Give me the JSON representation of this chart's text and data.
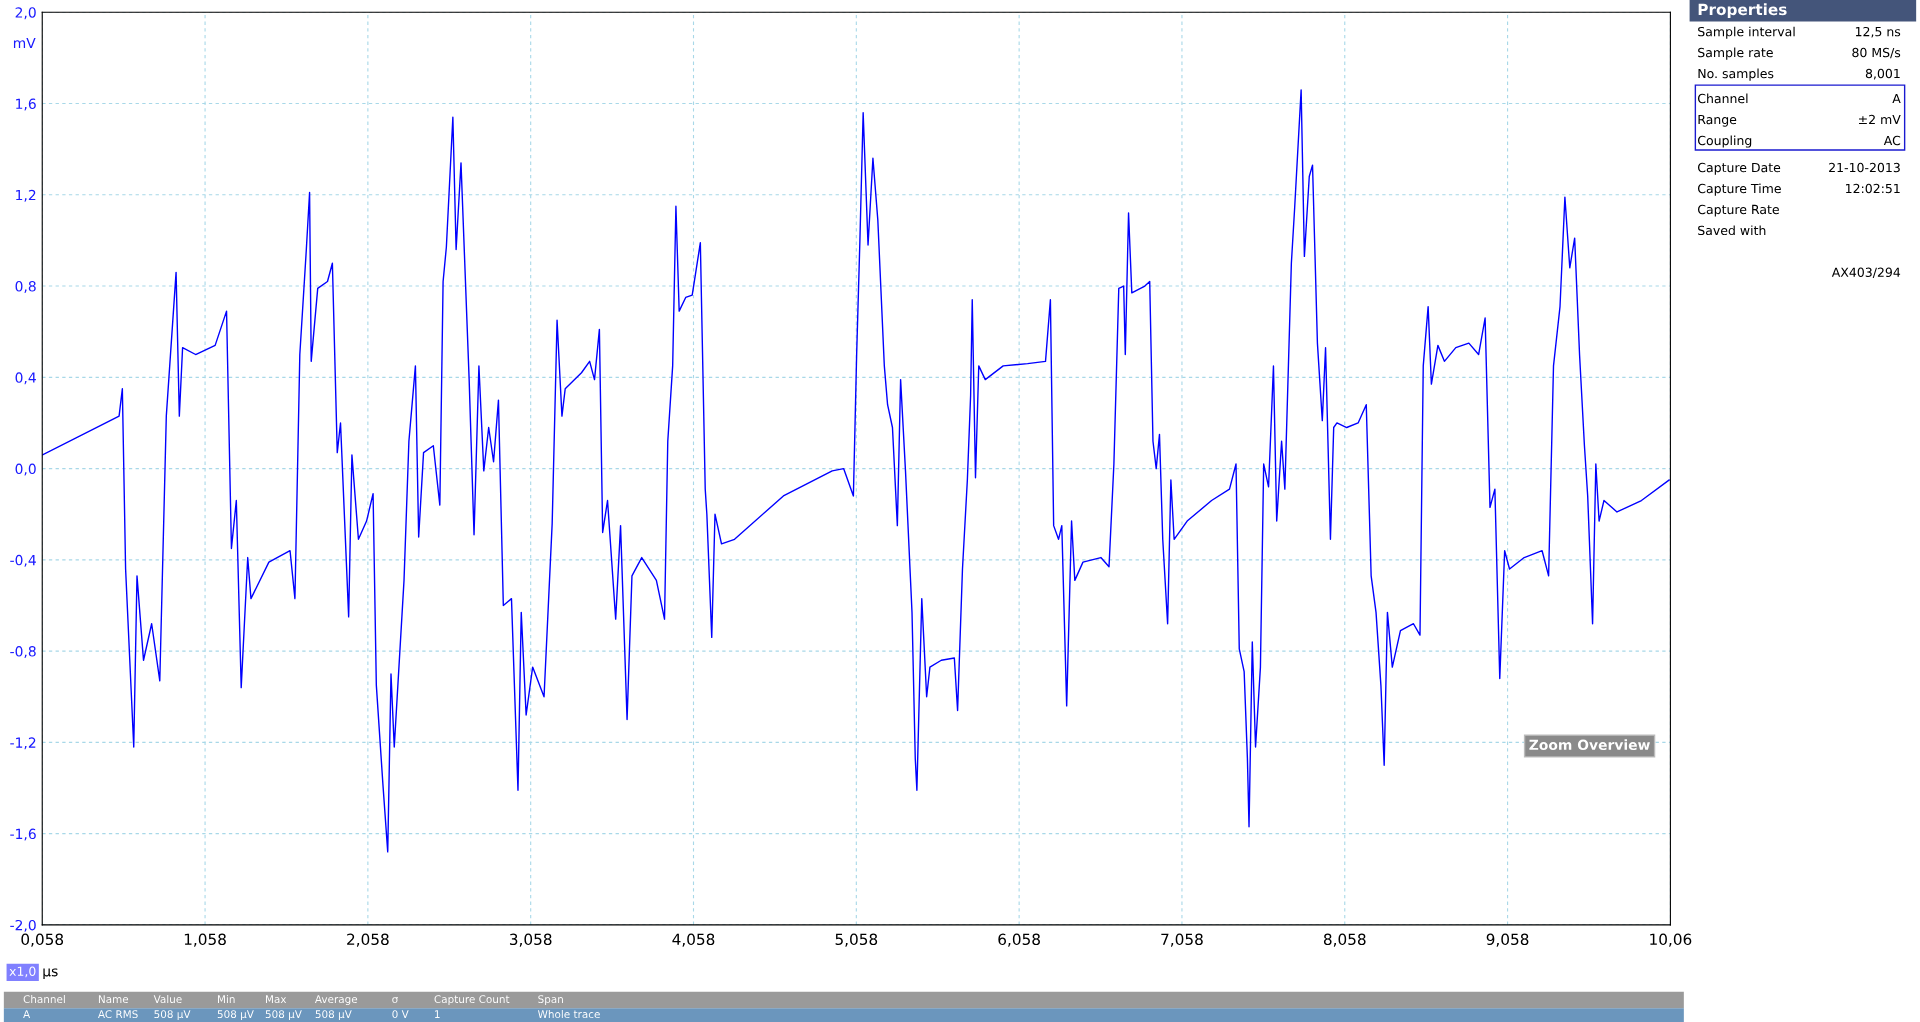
{
  "chart_data": [
    {
      "type": "line",
      "xlabel": "µs",
      "ylabel": "mV",
      "grid": true,
      "xlim": [
        0.058,
        10.058
      ],
      "ylim": [
        -2.0,
        2.0
      ],
      "xticks": [
        {
          "value": 0.058,
          "label": "0,058"
        },
        {
          "value": 1.058,
          "label": "1,058"
        },
        {
          "value": 2.058,
          "label": "2,058"
        },
        {
          "value": 3.058,
          "label": "3,058"
        },
        {
          "value": 4.058,
          "label": "4,058"
        },
        {
          "value": 5.058,
          "label": "5,058"
        },
        {
          "value": 6.058,
          "label": "6,058"
        },
        {
          "value": 7.058,
          "label": "7,058"
        },
        {
          "value": 8.058,
          "label": "8,058"
        },
        {
          "value": 9.058,
          "label": "9,058"
        },
        {
          "value": 10.058,
          "label": "10,06"
        }
      ],
      "yticks": [
        {
          "value": -2.0,
          "label": "-2,0"
        },
        {
          "value": -1.6,
          "label": "-1,6"
        },
        {
          "value": -1.2,
          "label": "-1,2"
        },
        {
          "value": -0.8,
          "label": "-0,8"
        },
        {
          "value": -0.4,
          "label": "-0,4"
        },
        {
          "value": 0.0,
          "label": "0,0"
        },
        {
          "value": 0.4,
          "label": "0,4"
        },
        {
          "value": 0.8,
          "label": "0,8"
        },
        {
          "value": 1.2,
          "label": "1,2"
        },
        {
          "value": 1.6,
          "label": "1,6"
        },
        {
          "value": 2.0,
          "label": "2,0"
        }
      ],
      "annotations": [
        "Zoom Overview",
        "x1,0"
      ],
      "series": [
        {
          "color": "#0000ff",
          "x": [
            0.06,
            0.53,
            0.55,
            0.57,
            0.62,
            0.64,
            0.68,
            0.73,
            0.78,
            0.82,
            0.88,
            0.9,
            0.92,
            1.0,
            1.12,
            1.19,
            1.22,
            1.25,
            1.28,
            1.32,
            1.34,
            1.45,
            1.58,
            1.61,
            1.64,
            1.68,
            1.7,
            1.71,
            1.75,
            1.81,
            1.84,
            1.87,
            1.89,
            1.94,
            1.96,
            2.0,
            2.05,
            2.09,
            2.11,
            2.15,
            2.18,
            2.2,
            2.22,
            2.28,
            2.31,
            2.35,
            2.37,
            2.4,
            2.46,
            2.5,
            2.52,
            2.54,
            2.58,
            2.6,
            2.63,
            2.68,
            2.71,
            2.74,
            2.77,
            2.8,
            2.83,
            2.86,
            2.89,
            2.94,
            2.98,
            3.0,
            3.03,
            3.07,
            3.14,
            3.19,
            3.22,
            3.25,
            3.27,
            3.37,
            3.42,
            3.45,
            3.48,
            3.5,
            3.53,
            3.58,
            3.61,
            3.65,
            3.68,
            3.74,
            3.83,
            3.88,
            3.9,
            3.93,
            3.95,
            3.97,
            4.01,
            4.05,
            4.1,
            4.13,
            4.14,
            4.17,
            4.19,
            4.23,
            4.31,
            4.61,
            4.91,
            4.98,
            5.04,
            5.06,
            5.08,
            5.1,
            5.13,
            5.16,
            5.19,
            5.23,
            5.25,
            5.28,
            5.31,
            5.33,
            5.36,
            5.4,
            5.42,
            5.43,
            5.46,
            5.49,
            5.51,
            5.58,
            5.66,
            5.68,
            5.71,
            5.74,
            5.76,
            5.77,
            5.79,
            5.81,
            5.85,
            5.96,
            6.11,
            6.22,
            6.25,
            6.27,
            6.3,
            6.32,
            6.35,
            6.38,
            6.4,
            6.45,
            6.56,
            6.61,
            6.64,
            6.67,
            6.7,
            6.71,
            6.73,
            6.75,
            6.83,
            6.86,
            6.88,
            6.9,
            6.92,
            6.94,
            6.97,
            6.99,
            7.01,
            7.09,
            7.24,
            7.35,
            7.39,
            7.41,
            7.44,
            7.46,
            7.47,
            7.49,
            7.51,
            7.54,
            7.56,
            7.59,
            7.62,
            7.64,
            7.67,
            7.69,
            7.73,
            7.75,
            7.79,
            7.81,
            7.84,
            7.86,
            7.89,
            7.92,
            7.94,
            7.97,
            7.99,
            8.01,
            8.07,
            8.14,
            8.19,
            8.22,
            8.25,
            8.28,
            8.3,
            8.32,
            8.35,
            8.4,
            8.48,
            8.52,
            8.54,
            8.57,
            8.59,
            8.63,
            8.67,
            8.74,
            8.82,
            8.88,
            8.92,
            8.95,
            8.98,
            9.01,
            9.04,
            9.07,
            9.16,
            9.27,
            9.31,
            9.34,
            9.38,
            9.41,
            9.44,
            9.47,
            9.5,
            9.53,
            9.55,
            9.58,
            9.6,
            9.62,
            9.65,
            9.73,
            9.88,
            10.05
          ],
          "values": [
            0.06,
            0.23,
            0.35,
            -0.44,
            -1.22,
            -0.47,
            -0.84,
            -0.68,
            -0.93,
            0.23,
            0.86,
            0.23,
            0.53,
            0.5,
            0.54,
            0.69,
            -0.35,
            -0.14,
            -0.96,
            -0.39,
            -0.57,
            -0.41,
            -0.36,
            -0.57,
            0.5,
            0.96,
            1.21,
            0.47,
            0.79,
            0.82,
            0.9,
            0.07,
            0.2,
            -0.65,
            0.06,
            -0.31,
            -0.23,
            -0.11,
            -0.95,
            -1.38,
            -1.68,
            -0.9,
            -1.22,
            -0.49,
            0.12,
            0.45,
            -0.3,
            0.07,
            0.1,
            -0.16,
            0.82,
            0.97,
            1.54,
            0.96,
            1.34,
            0.39,
            -0.29,
            0.45,
            -0.01,
            0.18,
            0.03,
            0.3,
            -0.6,
            -0.57,
            -1.41,
            -0.63,
            -1.08,
            -0.87,
            -1.0,
            -0.24,
            0.65,
            0.23,
            0.35,
            0.42,
            0.47,
            0.39,
            0.61,
            -0.28,
            -0.14,
            -0.66,
            -0.25,
            -1.1,
            -0.47,
            -0.39,
            -0.49,
            -0.66,
            0.12,
            0.45,
            1.15,
            0.69,
            0.75,
            0.76,
            0.99,
            -0.09,
            -0.2,
            -0.74,
            -0.2,
            -0.33,
            -0.31,
            -0.12,
            -0.01,
            0.0,
            -0.12,
            0.5,
            1.0,
            1.56,
            0.98,
            1.36,
            1.09,
            0.45,
            0.28,
            0.18,
            -0.25,
            0.39,
            -0.01,
            -0.63,
            -1.27,
            -1.41,
            -0.57,
            -1.0,
            -0.87,
            -0.84,
            -0.83,
            -1.06,
            -0.44,
            -0.05,
            0.32,
            0.74,
            -0.04,
            0.45,
            0.39,
            0.45,
            0.46,
            0.47,
            0.74,
            -0.25,
            -0.31,
            -0.25,
            -1.04,
            -0.23,
            -0.49,
            -0.41,
            -0.39,
            -0.43,
            0.02,
            0.79,
            0.8,
            0.5,
            1.12,
            0.77,
            0.8,
            0.82,
            0.12,
            0.0,
            0.15,
            -0.31,
            -0.68,
            -0.05,
            -0.31,
            -0.23,
            -0.14,
            -0.09,
            0.02,
            -0.79,
            -0.89,
            -1.27,
            -1.57,
            -0.76,
            -1.22,
            -0.87,
            0.02,
            -0.08,
            0.45,
            -0.23,
            0.12,
            -0.09,
            0.9,
            1.14,
            1.66,
            0.93,
            1.28,
            1.33,
            0.55,
            0.21,
            0.53,
            -0.31,
            0.18,
            0.2,
            0.18,
            0.2,
            0.28,
            -0.47,
            -0.63,
            -0.95,
            -1.3,
            -0.63,
            -0.87,
            -0.71,
            -0.68,
            -0.73,
            0.45,
            0.71,
            0.37,
            0.54,
            0.47,
            0.53,
            0.55,
            0.5,
            0.66,
            -0.17,
            -0.09,
            -0.92,
            -0.36,
            -0.44,
            -0.39,
            -0.36,
            -0.47,
            0.45,
            0.71,
            1.19,
            0.88,
            1.01,
            0.5,
            0.1,
            -0.12,
            -0.68,
            0.02,
            -0.23,
            -0.14,
            -0.19,
            -0.14,
            -0.05
          ]
        }
      ]
    },
    {
      "type": "other",
      "title": "Properties",
      "annotations": [
        "Sample interval",
        "12,5 ns",
        "Sample rate",
        "80 MS/s",
        "No. samples",
        "8,001",
        "Channel",
        "A",
        "Range",
        "±2 mV",
        "Coupling",
        "AC",
        "Capture Date",
        "21-10-2013",
        "Capture Time",
        "12:02:51",
        "Capture Rate",
        "Saved with",
        "AX403/294"
      ]
    },
    {
      "type": "other",
      "annotations": [
        "Channel",
        "Name",
        "Value",
        "Min",
        "Max",
        "Average",
        "σ",
        "Capture Count",
        "Span",
        "A",
        "AC RMS",
        "508 µV",
        "508 µV",
        "508 µV",
        "508 µV",
        "0 V",
        "1",
        "Whole trace"
      ]
    }
  ]
}
